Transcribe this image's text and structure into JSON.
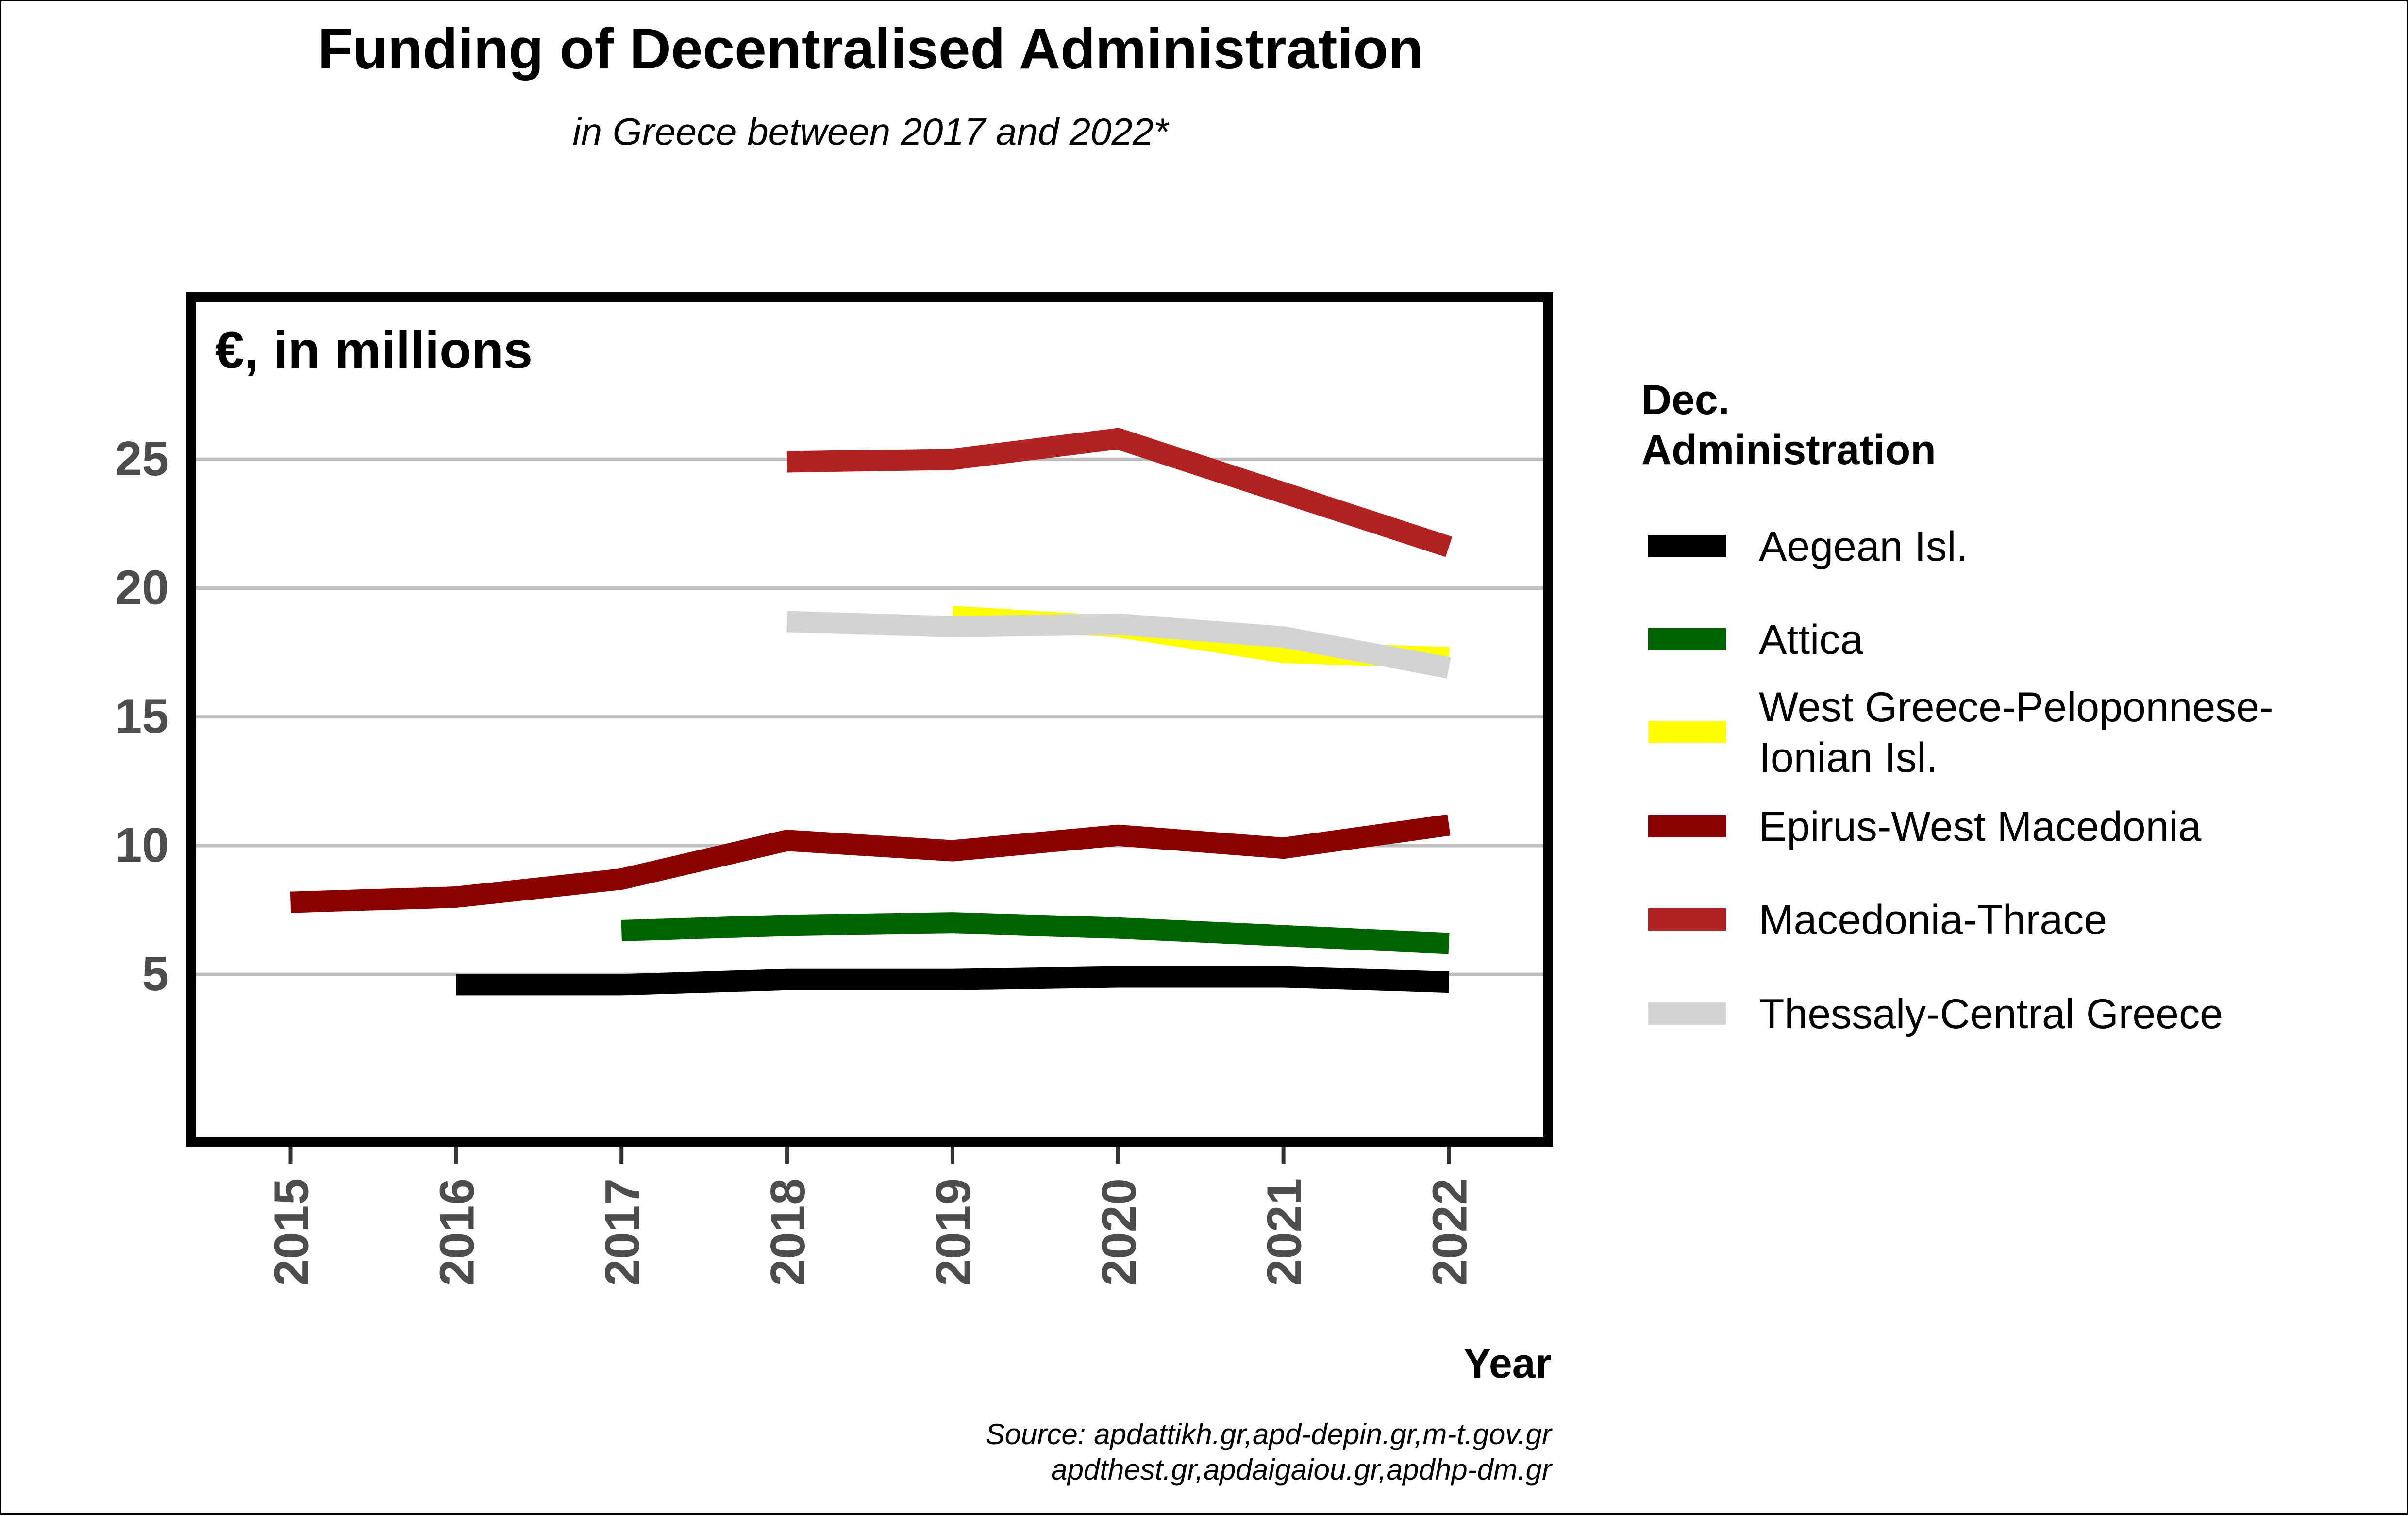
{
  "chart_data": {
    "type": "line",
    "title": "Funding of Decentralised Administration",
    "subtitle": "in Greece between 2017 and 2022*",
    "ylabel": "€, in millions",
    "xlabel": "Year",
    "ylim": [
      -1.5,
      31.3
    ],
    "yticks": [
      5,
      10,
      15,
      20,
      25
    ],
    "grid": true,
    "x": [
      2015,
      2016,
      2017,
      2018,
      2019,
      2020,
      2021,
      2022
    ],
    "legend_title": "Dec.\nAdministration",
    "legend_position": "right",
    "series": [
      {
        "name": "Aegean Isl.",
        "color": "#000000",
        "values": [
          null,
          4.6,
          4.6,
          4.8,
          4.8,
          4.9,
          4.9,
          4.7
        ]
      },
      {
        "name": "Attica",
        "color": "#006400",
        "values": [
          null,
          null,
          6.7,
          6.9,
          7.0,
          6.8,
          6.5,
          6.2
        ]
      },
      {
        "name": "West Greece-Peloponnese-\nIonian Isl.",
        "color": "#FFFF00",
        "values": [
          null,
          null,
          null,
          null,
          18.9,
          18.5,
          17.5,
          17.3
        ]
      },
      {
        "name": "Epirus-West Macedonia",
        "color": "#8B0000",
        "values": [
          7.8,
          8.0,
          8.7,
          10.2,
          9.8,
          10.4,
          9.9,
          10.8
        ]
      },
      {
        "name": "Macedonia-Thrace",
        "color": "#B22222",
        "values": [
          null,
          null,
          null,
          24.9,
          25.0,
          25.8,
          23.7,
          21.6
        ]
      },
      {
        "name": "Thessaly-Central Greece",
        "color": "#D3D3D3",
        "values": [
          null,
          null,
          null,
          18.7,
          18.5,
          18.6,
          18.1,
          16.9
        ]
      }
    ],
    "source": "Source: apdattikh.gr,apd-depin.gr,m-t.gov.gr\napdthest.gr,apdaigaiou.gr,apdhp-dm.gr"
  }
}
